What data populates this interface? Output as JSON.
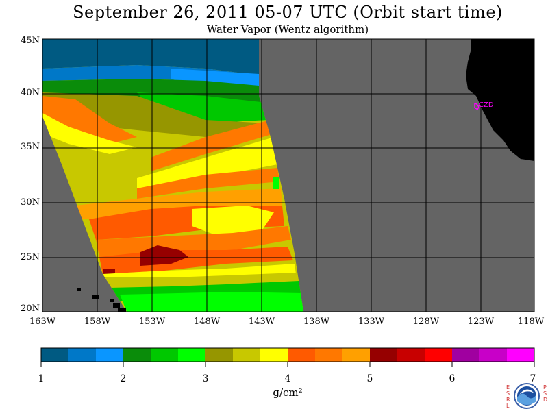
{
  "header": {
    "title": "September 26, 2011  05-07 UTC  (Orbit start time)",
    "subtitle": "Water Vapor (Wentz algorithm)"
  },
  "map": {
    "lat_labels": [
      "45N",
      "40N",
      "35N",
      "30N",
      "25N",
      "20N"
    ],
    "lon_labels": [
      "163W",
      "158W",
      "153W",
      "148W",
      "143W",
      "138W",
      "133W",
      "128W",
      "123W",
      "118W"
    ],
    "station_label": "CZD",
    "land_color": "#000000",
    "nodata_color": "#646464"
  },
  "colorbar": {
    "tick_labels": [
      "1",
      "2",
      "3",
      "4",
      "5",
      "6",
      "7"
    ],
    "unit": "g/cm²",
    "colors": [
      "#005a82",
      "#0078c8",
      "#0a96ff",
      "#0a8c0a",
      "#00c800",
      "#00ff00",
      "#969600",
      "#c8c800",
      "#ffff00",
      "#ff5a00",
      "#ff7800",
      "#ffa000",
      "#960000",
      "#c80000",
      "#ff0000",
      "#a000a0",
      "#c800c8",
      "#ff00ff"
    ]
  },
  "logo": {
    "left_letters": [
      "E",
      "S",
      "R",
      "L"
    ],
    "right_letters": [
      "P",
      "S",
      "D"
    ],
    "name": "NOAA"
  }
}
